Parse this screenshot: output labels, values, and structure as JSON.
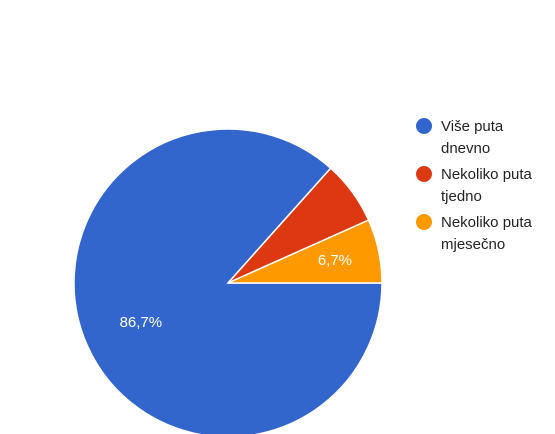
{
  "chart_data": {
    "type": "pie",
    "slices": [
      {
        "label": "Više puta dnevno",
        "value": 86.7,
        "value_label": "86,7%",
        "color": "#3366cc"
      },
      {
        "label": "Nekoliko puta tjedno",
        "value": 6.7,
        "value_label": "",
        "color": "#dc3912"
      },
      {
        "label": "Nekoliko puta mjesečno",
        "value": 6.7,
        "value_label": "6,7%",
        "color": "#ff9900"
      }
    ],
    "legend_position": "right",
    "legend_lines": [
      [
        "Više puta",
        "dnevno"
      ],
      [
        "Nekoliko puta",
        "tjedno"
      ],
      [
        "Nekoliko puta",
        "mjesečno"
      ]
    ]
  }
}
